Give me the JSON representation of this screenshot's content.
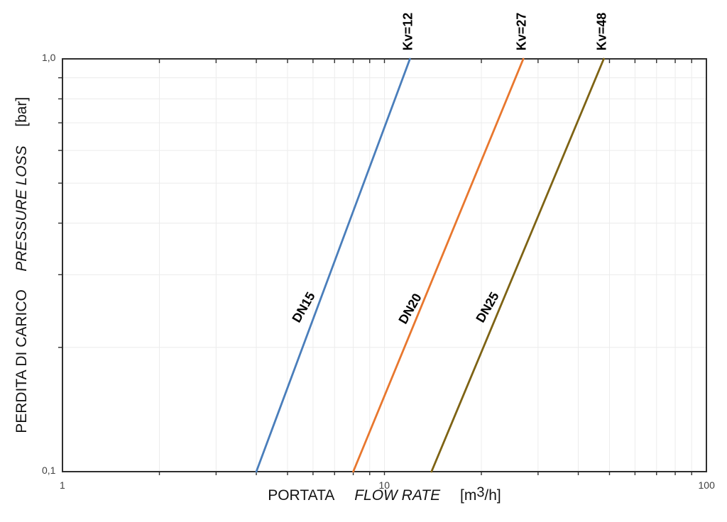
{
  "chart_data": {
    "type": "line",
    "x_axis": {
      "label_it": "PORTATA",
      "label_en": "FLOW RATE",
      "unit_prefix": "[m",
      "unit_sup": "3",
      "unit_suffix": "/h]",
      "scale": "log",
      "min": 1,
      "max": 100,
      "tick_labels": [
        {
          "value": 1,
          "label": "1"
        },
        {
          "value": 10,
          "label": "10"
        },
        {
          "value": 100,
          "label": "100"
        }
      ],
      "minor_gridlines": [
        2,
        3,
        4,
        5,
        6,
        7,
        8,
        9,
        20,
        30,
        40,
        50,
        60,
        70,
        80,
        90
      ],
      "interior_major_gridlines": [
        10
      ]
    },
    "y_axis": {
      "label_it": "PERDITA DI CARICO",
      "label_en": "PRESSURE LOSS",
      "unit": "[bar]",
      "scale": "log",
      "min": 0.1,
      "max": 1.0,
      "tick_labels": [
        {
          "value": 1.0,
          "label": "1,0"
        },
        {
          "value": 0.1,
          "label": "0,1"
        }
      ],
      "minor_gridlines": [
        0.2,
        0.3,
        0.4,
        0.5,
        0.6,
        0.7,
        0.8,
        0.9
      ],
      "interior_major_gridlines": []
    },
    "series": [
      {
        "name": "DN15",
        "kv_label": "Kv=12",
        "kv": 12,
        "color": "#4a7ebb",
        "points": [
          {
            "flow": 4,
            "pressure_loss": 0.1
          },
          {
            "flow": 12,
            "pressure_loss": 1.0
          }
        ]
      },
      {
        "name": "DN20",
        "kv_label": "Kv=27",
        "kv": 27,
        "color": "#e8772e",
        "points": [
          {
            "flow": 8,
            "pressure_loss": 0.1
          },
          {
            "flow": 27,
            "pressure_loss": 1.0
          }
        ]
      },
      {
        "name": "DN25",
        "kv_label": "Kv=48",
        "kv": 48,
        "color": "#7e6314",
        "points": [
          {
            "flow": 14,
            "pressure_loss": 0.1
          },
          {
            "flow": 48,
            "pressure_loss": 1.0
          }
        ]
      }
    ],
    "grid": true,
    "legend": "inline-labels"
  },
  "colors": {
    "background": "#ffffff",
    "axis": "#2e2e2e",
    "grid": "#ececec",
    "tick_label": "#404040",
    "title": "#141414",
    "series_label": "#000000"
  }
}
